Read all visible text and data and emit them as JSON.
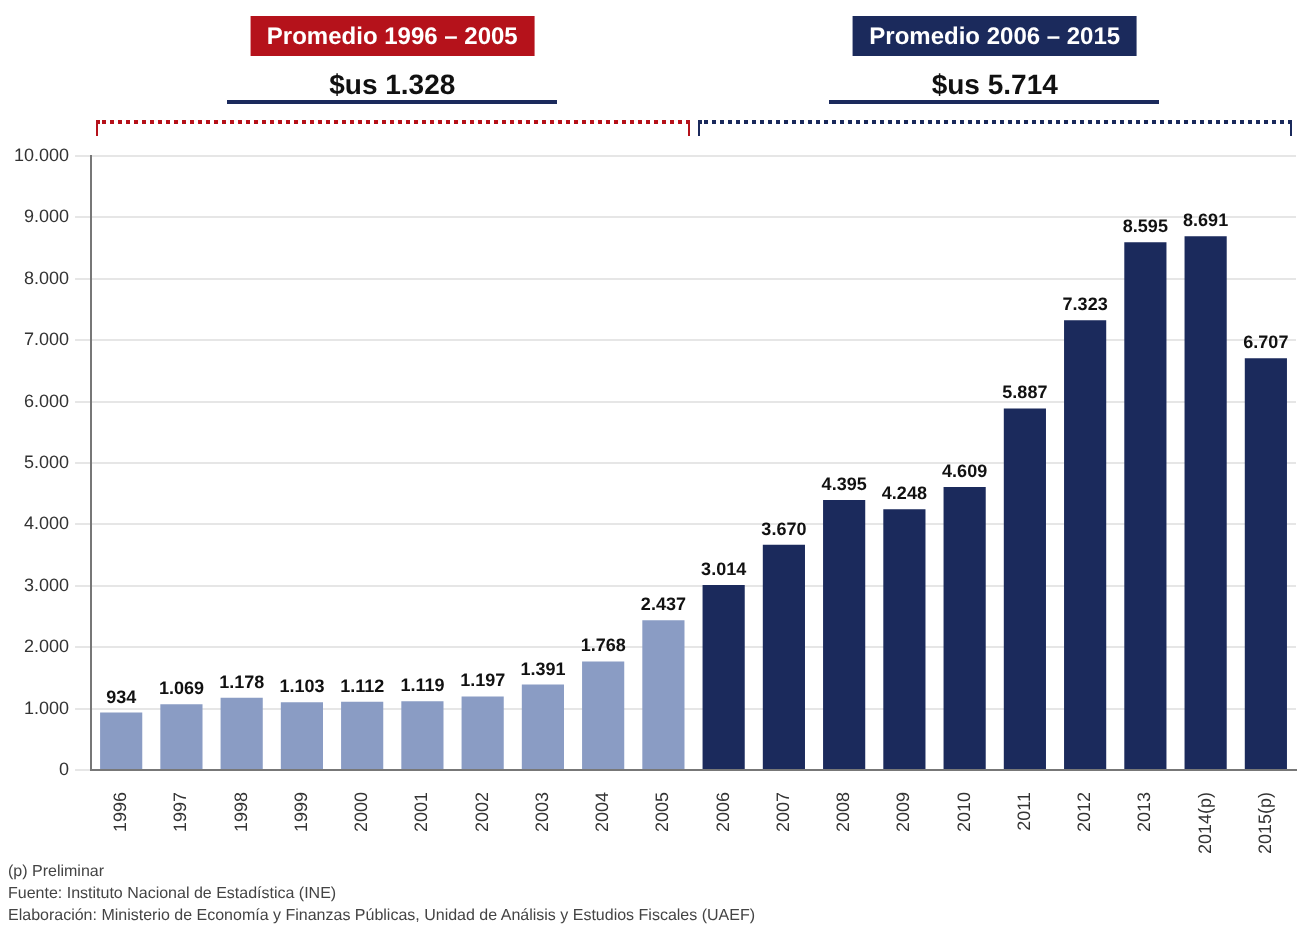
{
  "chart_data": {
    "type": "bar",
    "categories": [
      "1996",
      "1997",
      "1998",
      "1999",
      "2000",
      "2001",
      "2002",
      "2003",
      "2004",
      "2005",
      "2006",
      "2007",
      "2008",
      "2009",
      "2010",
      "2011",
      "2012",
      "2013",
      "2014(p)",
      "2015(p)"
    ],
    "values": [
      934,
      1069,
      1178,
      1103,
      1112,
      1119,
      1197,
      1391,
      1768,
      2437,
      3014,
      3670,
      4395,
      4248,
      4609,
      5887,
      7323,
      8595,
      8691,
      6707
    ],
    "value_labels": [
      "934",
      "1.069",
      "1.178",
      "1.103",
      "1.112",
      "1.119",
      "1.197",
      "1.391",
      "1.768",
      "2.437",
      "3.014",
      "3.670",
      "4.395",
      "4.248",
      "4.609",
      "5.887",
      "7.323",
      "8.595",
      "8.691",
      "6.707"
    ],
    "colors": [
      "#8a9cc4",
      "#8a9cc4",
      "#8a9cc4",
      "#8a9cc4",
      "#8a9cc4",
      "#8a9cc4",
      "#8a9cc4",
      "#8a9cc4",
      "#8a9cc4",
      "#8a9cc4",
      "#1b2a5c",
      "#1b2a5c",
      "#1b2a5c",
      "#1b2a5c",
      "#1b2a5c",
      "#1b2a5c",
      "#1b2a5c",
      "#1b2a5c",
      "#1b2a5c",
      "#1b2a5c"
    ],
    "ylim": [
      0,
      10000
    ],
    "yticks": [
      0,
      {
        "value": 1000,
        "label": "1.000"
      },
      {
        "value": 2000,
        "label": "2.000"
      },
      {
        "value": 3000,
        "label": "3.000"
      },
      {
        "value": 4000,
        "label": "4.000"
      },
      {
        "value": 5000,
        "label": "5.000"
      },
      {
        "value": 6000,
        "label": "6.000"
      },
      {
        "value": 7000,
        "label": "7.000"
      },
      {
        "value": 8000,
        "label": "8.000"
      },
      {
        "value": 9000,
        "label": "9.000"
      },
      {
        "value": 10000,
        "label": "10.000"
      }
    ],
    "grid": "y",
    "legend": false,
    "annotations": [
      "Promedio 1996 – 2005",
      "$us 1.328",
      "Promedio 2006 – 2015",
      "$us 5.714",
      "(p) Preliminar",
      "Fuente: Instituto Nacional de Estadística (INE)",
      "Elaboración: Ministerio de Economía y Finanzas Públicas, Unidad de Análisis y Estudios Fiscales (UAEF)"
    ]
  }
}
